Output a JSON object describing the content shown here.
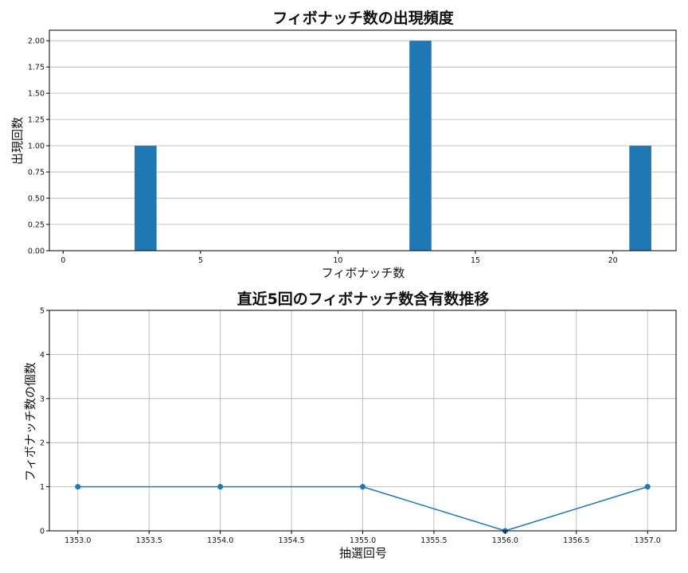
{
  "chart_data": [
    {
      "type": "bar",
      "title": "フィボナッチ数の出現頻度",
      "xlabel": "フィボナッチ数",
      "ylabel": "出現回数",
      "x": [
        3,
        13,
        21
      ],
      "values": [
        1,
        2,
        1
      ],
      "bar_width": 0.8,
      "xlim": [
        -0.5,
        22.3
      ],
      "ylim": [
        0,
        2.1
      ],
      "xticks": [
        0,
        5,
        10,
        15,
        20
      ],
      "xtick_labels": [
        "0",
        "5",
        "10",
        "15",
        "20"
      ],
      "yticks": [
        0,
        0.25,
        0.5,
        0.75,
        1.0,
        1.25,
        1.5,
        1.75,
        2.0
      ],
      "ytick_labels": [
        "0.00",
        "0.25",
        "0.50",
        "0.75",
        "1.00",
        "1.25",
        "1.50",
        "1.75",
        "2.00"
      ],
      "grid": "y",
      "color": "#1f77b4"
    },
    {
      "type": "line",
      "title": "直近5回のフィボナッチ数含有数推移",
      "xlabel": "抽選回号",
      "ylabel": "フィボナッチ数の個数",
      "x": [
        1353,
        1354,
        1355,
        1356,
        1357
      ],
      "values": [
        1,
        1,
        1,
        0,
        1
      ],
      "xlim": [
        1352.8,
        1357.2
      ],
      "ylim": [
        0,
        5
      ],
      "xticks": [
        1353.0,
        1353.5,
        1354.0,
        1354.5,
        1355.0,
        1355.5,
        1356.0,
        1356.5,
        1357.0
      ],
      "xtick_labels": [
        "1353.0",
        "1353.5",
        "1354.0",
        "1354.5",
        "1355.0",
        "1355.5",
        "1356.0",
        "1356.5",
        "1357.0"
      ],
      "yticks": [
        0,
        1,
        2,
        3,
        4,
        5
      ],
      "ytick_labels": [
        "0",
        "1",
        "2",
        "3",
        "4",
        "5"
      ],
      "grid": "both",
      "marker": "circle",
      "color": "#1f77b4"
    }
  ]
}
